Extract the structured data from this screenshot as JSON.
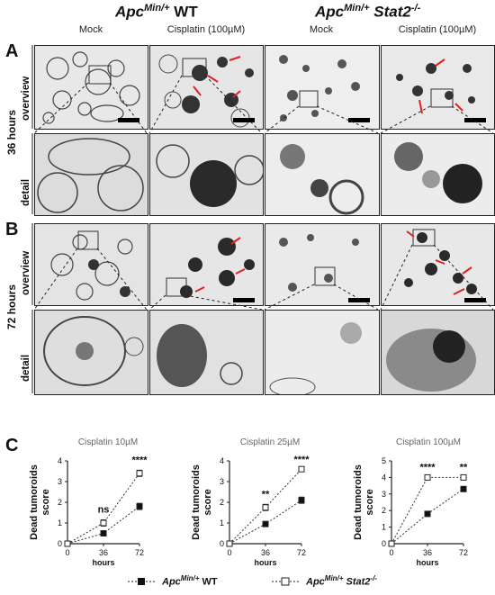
{
  "header": {
    "groups": [
      {
        "base": "Apc",
        "sup": "Min/+",
        "rest": " WT",
        "rest_italic": false
      },
      {
        "base": "Apc",
        "sup": "Min/+",
        "rest": " Stat2",
        "rest_italic": true,
        "rest_sup": "-/-"
      }
    ],
    "columns": [
      "Mock",
      "Cisplatin (100µM)",
      "Mock",
      "Cisplatin (100µM)"
    ]
  },
  "panels": [
    {
      "letter": "A",
      "time": "36 hours",
      "rows": [
        "overview",
        "detail"
      ]
    },
    {
      "letter": "B",
      "time": "72 hours",
      "rows": [
        "overview",
        "detail"
      ]
    }
  ],
  "panel_c_letter": "C",
  "chart_data": [
    {
      "type": "line",
      "title": "Cisplatin 10µM",
      "xlabel": "hours",
      "ylabel": "Dead tumoroids score",
      "x": [
        0,
        36,
        72
      ],
      "xticks": [
        "0",
        "36",
        "72"
      ],
      "ylim": [
        0,
        4
      ],
      "yticks": [
        "0",
        "1",
        "2",
        "3",
        "4"
      ],
      "series": [
        {
          "values": [
            0,
            0.5,
            1.8
          ],
          "err": [
            0,
            0.1,
            0.15
          ],
          "style": "solid-square"
        },
        {
          "values": [
            0,
            1.0,
            3.4
          ],
          "err": [
            0,
            0.15,
            0.15
          ],
          "style": "open-square"
        }
      ],
      "significance": [
        {
          "x": 36,
          "label": "ns"
        },
        {
          "x": 72,
          "label": "****"
        }
      ]
    },
    {
      "type": "line",
      "title": "Cisplatin 25µM",
      "xlabel": "hours",
      "ylabel": "Dead tumoroids score",
      "x": [
        0,
        36,
        72
      ],
      "xticks": [
        "0",
        "36",
        "72"
      ],
      "ylim": [
        0,
        4
      ],
      "yticks": [
        "0",
        "1",
        "2",
        "3",
        "4"
      ],
      "series": [
        {
          "values": [
            0,
            0.95,
            2.1
          ],
          "err": [
            0,
            0.08,
            0.15
          ],
          "style": "solid-square"
        },
        {
          "values": [
            0,
            1.75,
            3.6
          ],
          "err": [
            0,
            0.15,
            0.1
          ],
          "style": "open-square"
        }
      ],
      "significance": [
        {
          "x": 36,
          "label": "**"
        },
        {
          "x": 72,
          "label": "****"
        }
      ]
    },
    {
      "type": "line",
      "title": "Cisplatin 100µM",
      "xlabel": "hours",
      "ylabel": "Dead tumoroids score",
      "x": [
        0,
        36,
        72
      ],
      "xticks": [
        "0",
        "36",
        "72"
      ],
      "ylim": [
        0,
        5
      ],
      "yticks": [
        "0",
        "1",
        "2",
        "3",
        "4",
        "5"
      ],
      "series": [
        {
          "values": [
            0,
            1.8,
            3.3
          ],
          "err": [
            0,
            0.08,
            0.12
          ],
          "style": "solid-square"
        },
        {
          "values": [
            0,
            4.0,
            4.0
          ],
          "err": [
            0,
            0,
            0
          ],
          "style": "open-square"
        }
      ],
      "significance": [
        {
          "x": 36,
          "label": "****"
        },
        {
          "x": 72,
          "label": "**"
        }
      ]
    }
  ],
  "legend": [
    {
      "base": "Apc",
      "sup": "Min/+",
      "rest": " WT"
    },
    {
      "base": "Apc",
      "sup": "Min/+",
      "rest_italic": "Stat2",
      "rest_sup": "-/-"
    }
  ]
}
